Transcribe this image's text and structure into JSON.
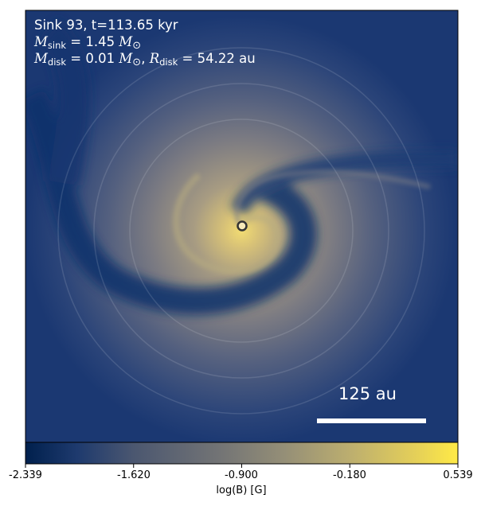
{
  "annotation": {
    "line1": "Sink 93, t=113.65 kyr",
    "msink_sym": "M",
    "msink_sub": "sink",
    "msink_value": " = 1.45",
    "disk_m_sym": "M",
    "disk_m_sub": "disk",
    "disk_m_value": " = 0.01",
    "sun_symbol": "⊙",
    "disk_r_sym": "R",
    "disk_r_sub": "disk",
    "disk_r_value": " = 54.22 au"
  },
  "scale_bar": {
    "label": "125 au"
  },
  "colorbar": {
    "label": "log(B) [G]",
    "min": -2.339,
    "max": 0.539,
    "ticks": [
      "-2.339",
      "-1.620",
      "-0.900",
      "-0.180",
      "0.539"
    ],
    "colors": [
      "#00204d",
      "#575c6d",
      "#7c7b78",
      "#a69d75",
      "#ffea46"
    ]
  },
  "colors": {
    "background_field": "#1a3a78",
    "spiral_bright": "#e6d27a",
    "sink_marker": "#ffffff"
  }
}
